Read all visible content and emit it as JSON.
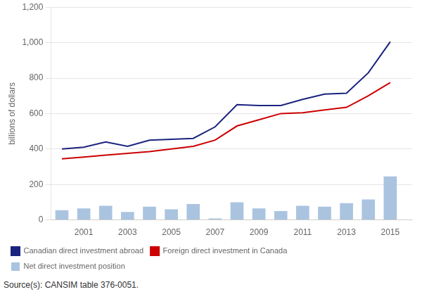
{
  "chart_data": {
    "type": "bar",
    "ylabel": "billions of dollars",
    "x": [
      2000,
      2001,
      2002,
      2003,
      2004,
      2005,
      2006,
      2007,
      2008,
      2009,
      2010,
      2011,
      2012,
      2013,
      2014,
      2015
    ],
    "series": [
      {
        "name": "Canadian direct investment abroad",
        "type": "line",
        "color": "#1a237e",
        "values": [
          400,
          410,
          440,
          415,
          450,
          455,
          460,
          525,
          650,
          645,
          645,
          680,
          710,
          715,
          830,
          1005
        ]
      },
      {
        "name": "Foreign direct investment in Canada",
        "type": "line",
        "color": "#cc0000",
        "values": [
          345,
          355,
          365,
          375,
          385,
          400,
          415,
          450,
          530,
          565,
          600,
          605,
          620,
          635,
          700,
          775
        ]
      },
      {
        "name": "Net direct investment position",
        "type": "bar",
        "color": "#aac4e0",
        "values": [
          55,
          65,
          80,
          45,
          75,
          60,
          90,
          8,
          100,
          65,
          50,
          80,
          75,
          95,
          115,
          245
        ]
      }
    ],
    "xlim": [
      1999.5,
      2016
    ],
    "xticks": [
      2001,
      2003,
      2005,
      2007,
      2009,
      2011,
      2013,
      2015
    ],
    "ylim": [
      0,
      1200
    ],
    "yticks": [
      0,
      200,
      400,
      600,
      800,
      {
        "value": 1000,
        "label": "1,000"
      },
      {
        "value": 1200,
        "label": "1,200"
      }
    ],
    "grid": "y",
    "legend": "bottom",
    "annotations": [
      "Source(s): CANSIM table 376-0051."
    ]
  }
}
